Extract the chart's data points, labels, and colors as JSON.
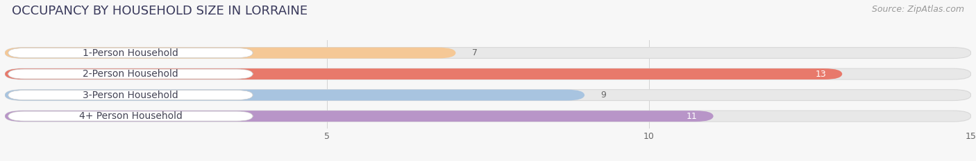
{
  "title": "OCCUPANCY BY HOUSEHOLD SIZE IN LORRAINE",
  "source": "Source: ZipAtlas.com",
  "categories": [
    "1-Person Household",
    "2-Person Household",
    "3-Person Household",
    "4+ Person Household"
  ],
  "values": [
    7,
    13,
    9,
    11
  ],
  "bar_colors": [
    "#f5c896",
    "#e8796b",
    "#a8c4e0",
    "#b895c8"
  ],
  "label_pill_colors": [
    "#f5c896",
    "#e8796b",
    "#a8c4e0",
    "#b895c8"
  ],
  "xlim": [
    0,
    15
  ],
  "xticks": [
    5,
    10,
    15
  ],
  "value_label_color_inside": "#ffffff",
  "value_label_color_outside": "#666666",
  "background_color": "#f7f7f7",
  "bar_background_color": "#e8e8e8",
  "title_fontsize": 13,
  "source_fontsize": 9,
  "label_fontsize": 10,
  "value_fontsize": 9,
  "title_color": "#3a3a5c",
  "source_color": "#999999"
}
